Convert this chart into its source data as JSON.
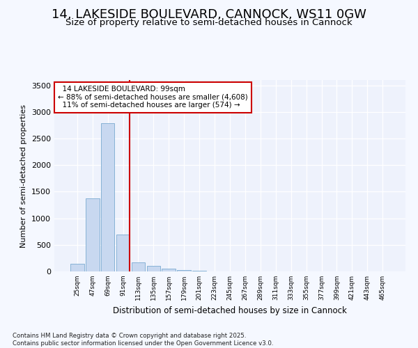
{
  "title": "14, LAKESIDE BOULEVARD, CANNOCK, WS11 0GW",
  "subtitle": "Size of property relative to semi-detached houses in Cannock",
  "xlabel": "Distribution of semi-detached houses by size in Cannock",
  "ylabel": "Number of semi-detached properties",
  "property_label": "14 LAKESIDE BOULEVARD: 99sqm",
  "pct_smaller": 88,
  "pct_larger": 11,
  "n_smaller": 4608,
  "n_larger": 574,
  "bin_labels": [
    "25sqm",
    "47sqm",
    "69sqm",
    "91sqm",
    "113sqm",
    "135sqm",
    "157sqm",
    "179sqm",
    "201sqm",
    "223sqm",
    "245sqm",
    "267sqm",
    "289sqm",
    "311sqm",
    "333sqm",
    "355sqm",
    "377sqm",
    "399sqm",
    "421sqm",
    "443sqm",
    "465sqm"
  ],
  "bin_values": [
    145,
    1380,
    2790,
    700,
    175,
    105,
    50,
    25,
    10,
    0,
    0,
    0,
    0,
    0,
    0,
    0,
    0,
    0,
    0,
    0,
    0
  ],
  "bar_color": "#c8d8f0",
  "bar_edge_color": "#7aaad0",
  "vline_color": "#cc0000",
  "vline_x": 3.42,
  "ylim": [
    0,
    3600
  ],
  "yticks": [
    0,
    500,
    1000,
    1500,
    2000,
    2500,
    3000,
    3500
  ],
  "bg_color": "#f5f8ff",
  "plot_bg_color": "#eef2fc",
  "title_fontsize": 13,
  "subtitle_fontsize": 9.5,
  "footer": "Contains HM Land Registry data © Crown copyright and database right 2025.\nContains public sector information licensed under the Open Government Licence v3.0."
}
